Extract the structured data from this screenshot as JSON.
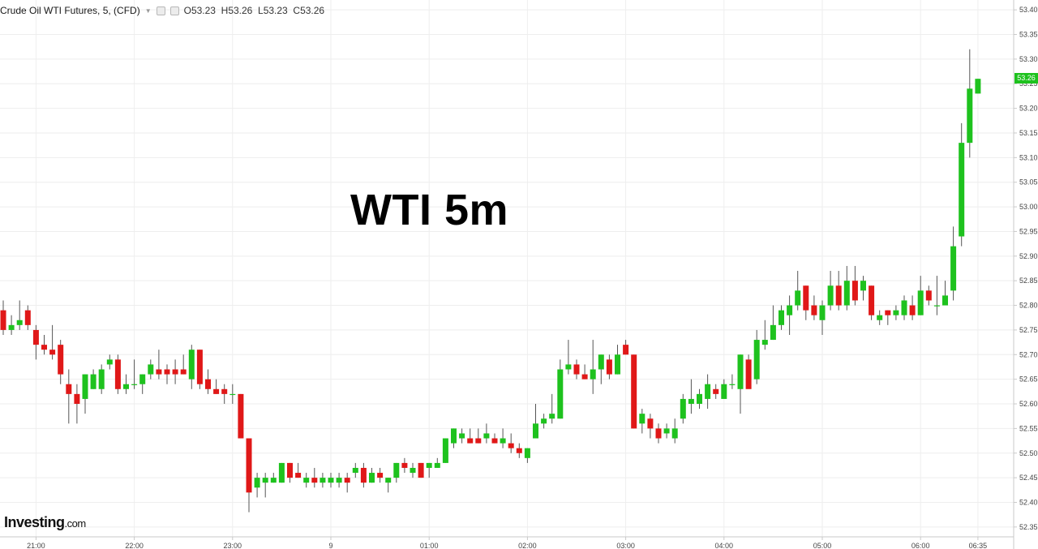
{
  "header": {
    "symbol": "Crude Oil WTI Futures, 5, (CFD)",
    "open": "O53.23",
    "high": "H53.26",
    "low": "L53.23",
    "close": "C53.26"
  },
  "overlay_title": "WTI 5m",
  "brand": {
    "name": "Investing",
    "suffix": ".com"
  },
  "last_price_label": "53.26",
  "colors": {
    "up": "#1ec21e",
    "down": "#e01818",
    "wick": "#555555",
    "grid": "#eeeeee",
    "last_tag": "#1ec21e"
  },
  "chart_data": {
    "type": "candlestick",
    "interval_minutes": 5,
    "ylim": [
      52.33,
      53.42
    ],
    "y_ticks": [
      "53.40",
      "53.35",
      "53.30",
      "53.25",
      "53.20",
      "53.15",
      "53.10",
      "53.05",
      "53.00",
      "52.95",
      "52.90",
      "52.85",
      "52.80",
      "52.75",
      "52.70",
      "52.65",
      "52.60",
      "52.55",
      "52.50",
      "52.45",
      "52.40",
      "52.35"
    ],
    "x_ticks": [
      {
        "label": "21:00",
        "bar": 4
      },
      {
        "label": "22:00",
        "bar": 16
      },
      {
        "label": "23:00",
        "bar": 28
      },
      {
        "label": "9",
        "bar": 40
      },
      {
        "label": "01:00",
        "bar": 52
      },
      {
        "label": "02:00",
        "bar": 64
      },
      {
        "label": "03:00",
        "bar": 76
      },
      {
        "label": "04:00",
        "bar": 88
      },
      {
        "label": "05:00",
        "bar": 100
      },
      {
        "label": "06:00",
        "bar": 112
      },
      {
        "label": "06:35",
        "bar": 119
      }
    ],
    "last_price": 53.26,
    "candles": [
      [
        52.79,
        52.81,
        52.74,
        52.75
      ],
      [
        52.75,
        52.78,
        52.74,
        52.76
      ],
      [
        52.76,
        52.81,
        52.75,
        52.77
      ],
      [
        52.79,
        52.8,
        52.75,
        52.76
      ],
      [
        52.75,
        52.76,
        52.69,
        52.72
      ],
      [
        52.72,
        52.74,
        52.7,
        52.71
      ],
      [
        52.71,
        52.76,
        52.69,
        52.7
      ],
      [
        52.72,
        52.73,
        52.64,
        52.66
      ],
      [
        52.64,
        52.67,
        52.56,
        52.62
      ],
      [
        52.62,
        52.64,
        52.56,
        52.6
      ],
      [
        52.61,
        52.66,
        52.58,
        52.66
      ],
      [
        52.63,
        52.67,
        52.63,
        52.66
      ],
      [
        52.63,
        52.68,
        52.62,
        52.67
      ],
      [
        52.68,
        52.7,
        52.67,
        52.69
      ],
      [
        52.69,
        52.7,
        52.62,
        52.63
      ],
      [
        52.63,
        52.66,
        52.62,
        52.64
      ],
      [
        52.64,
        52.69,
        52.63,
        52.64
      ],
      [
        52.64,
        52.66,
        52.62,
        52.66
      ],
      [
        52.66,
        52.69,
        52.65,
        52.68
      ],
      [
        52.67,
        52.71,
        52.65,
        52.66
      ],
      [
        52.67,
        52.68,
        52.64,
        52.66
      ],
      [
        52.67,
        52.69,
        52.64,
        52.66
      ],
      [
        52.67,
        52.7,
        52.66,
        52.66
      ],
      [
        52.65,
        52.72,
        52.63,
        52.71
      ],
      [
        52.71,
        52.71,
        52.63,
        52.64
      ],
      [
        52.65,
        52.67,
        52.62,
        52.63
      ],
      [
        52.63,
        52.65,
        52.62,
        52.62
      ],
      [
        52.63,
        52.64,
        52.6,
        52.62
      ],
      [
        52.62,
        52.64,
        52.6,
        52.62
      ],
      [
        52.62,
        52.62,
        52.53,
        52.53
      ],
      [
        52.53,
        52.53,
        52.38,
        52.42
      ],
      [
        52.43,
        52.46,
        52.41,
        52.45
      ],
      [
        52.44,
        52.46,
        52.41,
        52.45
      ],
      [
        52.44,
        52.46,
        52.44,
        52.45
      ],
      [
        52.44,
        52.48,
        52.44,
        52.48
      ],
      [
        52.48,
        52.48,
        52.44,
        52.45
      ],
      [
        52.46,
        52.48,
        52.45,
        52.45
      ],
      [
        52.44,
        52.46,
        52.43,
        52.45
      ],
      [
        52.45,
        52.47,
        52.43,
        52.44
      ],
      [
        52.44,
        52.46,
        52.43,
        52.45
      ],
      [
        52.44,
        52.46,
        52.43,
        52.45
      ],
      [
        52.44,
        52.46,
        52.43,
        52.45
      ],
      [
        52.45,
        52.46,
        52.42,
        52.44
      ],
      [
        52.46,
        52.48,
        52.45,
        52.47
      ],
      [
        52.47,
        52.48,
        52.43,
        52.44
      ],
      [
        52.44,
        52.47,
        52.44,
        52.46
      ],
      [
        52.46,
        52.47,
        52.44,
        52.45
      ],
      [
        52.44,
        52.45,
        52.42,
        52.45
      ],
      [
        52.45,
        52.48,
        52.44,
        52.48
      ],
      [
        52.48,
        52.49,
        52.46,
        52.47
      ],
      [
        52.46,
        52.48,
        52.45,
        52.47
      ],
      [
        52.48,
        52.48,
        52.45,
        52.45
      ],
      [
        52.47,
        52.48,
        52.45,
        52.48
      ],
      [
        52.47,
        52.49,
        52.47,
        52.48
      ],
      [
        52.48,
        52.53,
        52.48,
        52.53
      ],
      [
        52.52,
        52.55,
        52.51,
        52.55
      ],
      [
        52.53,
        52.55,
        52.52,
        52.54
      ],
      [
        52.53,
        52.55,
        52.52,
        52.52
      ],
      [
        52.53,
        52.55,
        52.52,
        52.52
      ],
      [
        52.53,
        52.56,
        52.52,
        52.54
      ],
      [
        52.53,
        52.54,
        52.52,
        52.52
      ],
      [
        52.52,
        52.55,
        52.51,
        52.53
      ],
      [
        52.52,
        52.54,
        52.5,
        52.51
      ],
      [
        52.51,
        52.52,
        52.49,
        52.5
      ],
      [
        52.49,
        52.51,
        52.48,
        52.51
      ],
      [
        52.53,
        52.6,
        52.53,
        52.56
      ],
      [
        52.56,
        52.58,
        52.55,
        52.57
      ],
      [
        52.57,
        52.62,
        52.56,
        52.58
      ],
      [
        52.57,
        52.69,
        52.57,
        52.67
      ],
      [
        52.67,
        52.73,
        52.66,
        52.68
      ],
      [
        52.68,
        52.69,
        52.65,
        52.66
      ],
      [
        52.66,
        52.68,
        52.65,
        52.65
      ],
      [
        52.65,
        52.73,
        52.62,
        52.67
      ],
      [
        52.67,
        52.7,
        52.64,
        52.7
      ],
      [
        52.69,
        52.7,
        52.65,
        52.66
      ],
      [
        52.66,
        52.72,
        52.66,
        52.7
      ],
      [
        52.72,
        52.73,
        52.7,
        52.7
      ],
      [
        52.7,
        52.7,
        52.55,
        52.55
      ],
      [
        52.56,
        52.59,
        52.54,
        52.58
      ],
      [
        52.57,
        52.58,
        52.53,
        52.55
      ],
      [
        52.55,
        52.56,
        52.52,
        52.53
      ],
      [
        52.54,
        52.56,
        52.53,
        52.55
      ],
      [
        52.53,
        52.57,
        52.52,
        52.55
      ],
      [
        52.57,
        52.62,
        52.56,
        52.61
      ],
      [
        52.6,
        52.65,
        52.58,
        52.61
      ],
      [
        52.6,
        52.63,
        52.59,
        52.62
      ],
      [
        52.61,
        52.66,
        52.59,
        52.64
      ],
      [
        52.63,
        52.64,
        52.61,
        52.62
      ],
      [
        52.61,
        52.65,
        52.61,
        52.64
      ],
      [
        52.64,
        52.66,
        52.63,
        52.64
      ],
      [
        52.63,
        52.7,
        52.58,
        52.7
      ],
      [
        52.69,
        52.7,
        52.64,
        52.63
      ],
      [
        52.65,
        52.75,
        52.64,
        52.73
      ],
      [
        52.72,
        52.77,
        52.71,
        52.73
      ],
      [
        52.73,
        52.8,
        52.73,
        52.76
      ],
      [
        52.76,
        52.8,
        52.75,
        52.79
      ],
      [
        52.78,
        52.82,
        52.74,
        52.8
      ],
      [
        52.8,
        52.87,
        52.79,
        52.83
      ],
      [
        52.84,
        52.84,
        52.77,
        52.79
      ],
      [
        52.8,
        52.82,
        52.77,
        52.78
      ],
      [
        52.77,
        52.81,
        52.74,
        52.8
      ],
      [
        52.8,
        52.87,
        52.79,
        52.84
      ],
      [
        52.84,
        52.87,
        52.79,
        52.8
      ],
      [
        52.8,
        52.88,
        52.79,
        52.85
      ],
      [
        52.85,
        52.88,
        52.8,
        52.81
      ],
      [
        52.83,
        52.86,
        52.81,
        52.85
      ],
      [
        52.84,
        52.84,
        52.77,
        52.78
      ],
      [
        52.77,
        52.79,
        52.76,
        52.78
      ],
      [
        52.79,
        52.79,
        52.76,
        52.78
      ],
      [
        52.78,
        52.8,
        52.77,
        52.79
      ],
      [
        52.78,
        52.82,
        52.77,
        52.81
      ],
      [
        52.8,
        52.82,
        52.77,
        52.78
      ],
      [
        52.78,
        52.86,
        52.78,
        52.83
      ],
      [
        52.83,
        52.84,
        52.8,
        52.81
      ],
      [
        52.8,
        52.86,
        52.78,
        52.8
      ],
      [
        52.8,
        52.85,
        52.8,
        52.82
      ],
      [
        52.83,
        52.96,
        52.81,
        52.92
      ],
      [
        52.94,
        53.17,
        52.92,
        53.13
      ],
      [
        53.13,
        53.32,
        53.1,
        53.24
      ],
      [
        53.23,
        53.26,
        53.23,
        53.26
      ]
    ]
  }
}
